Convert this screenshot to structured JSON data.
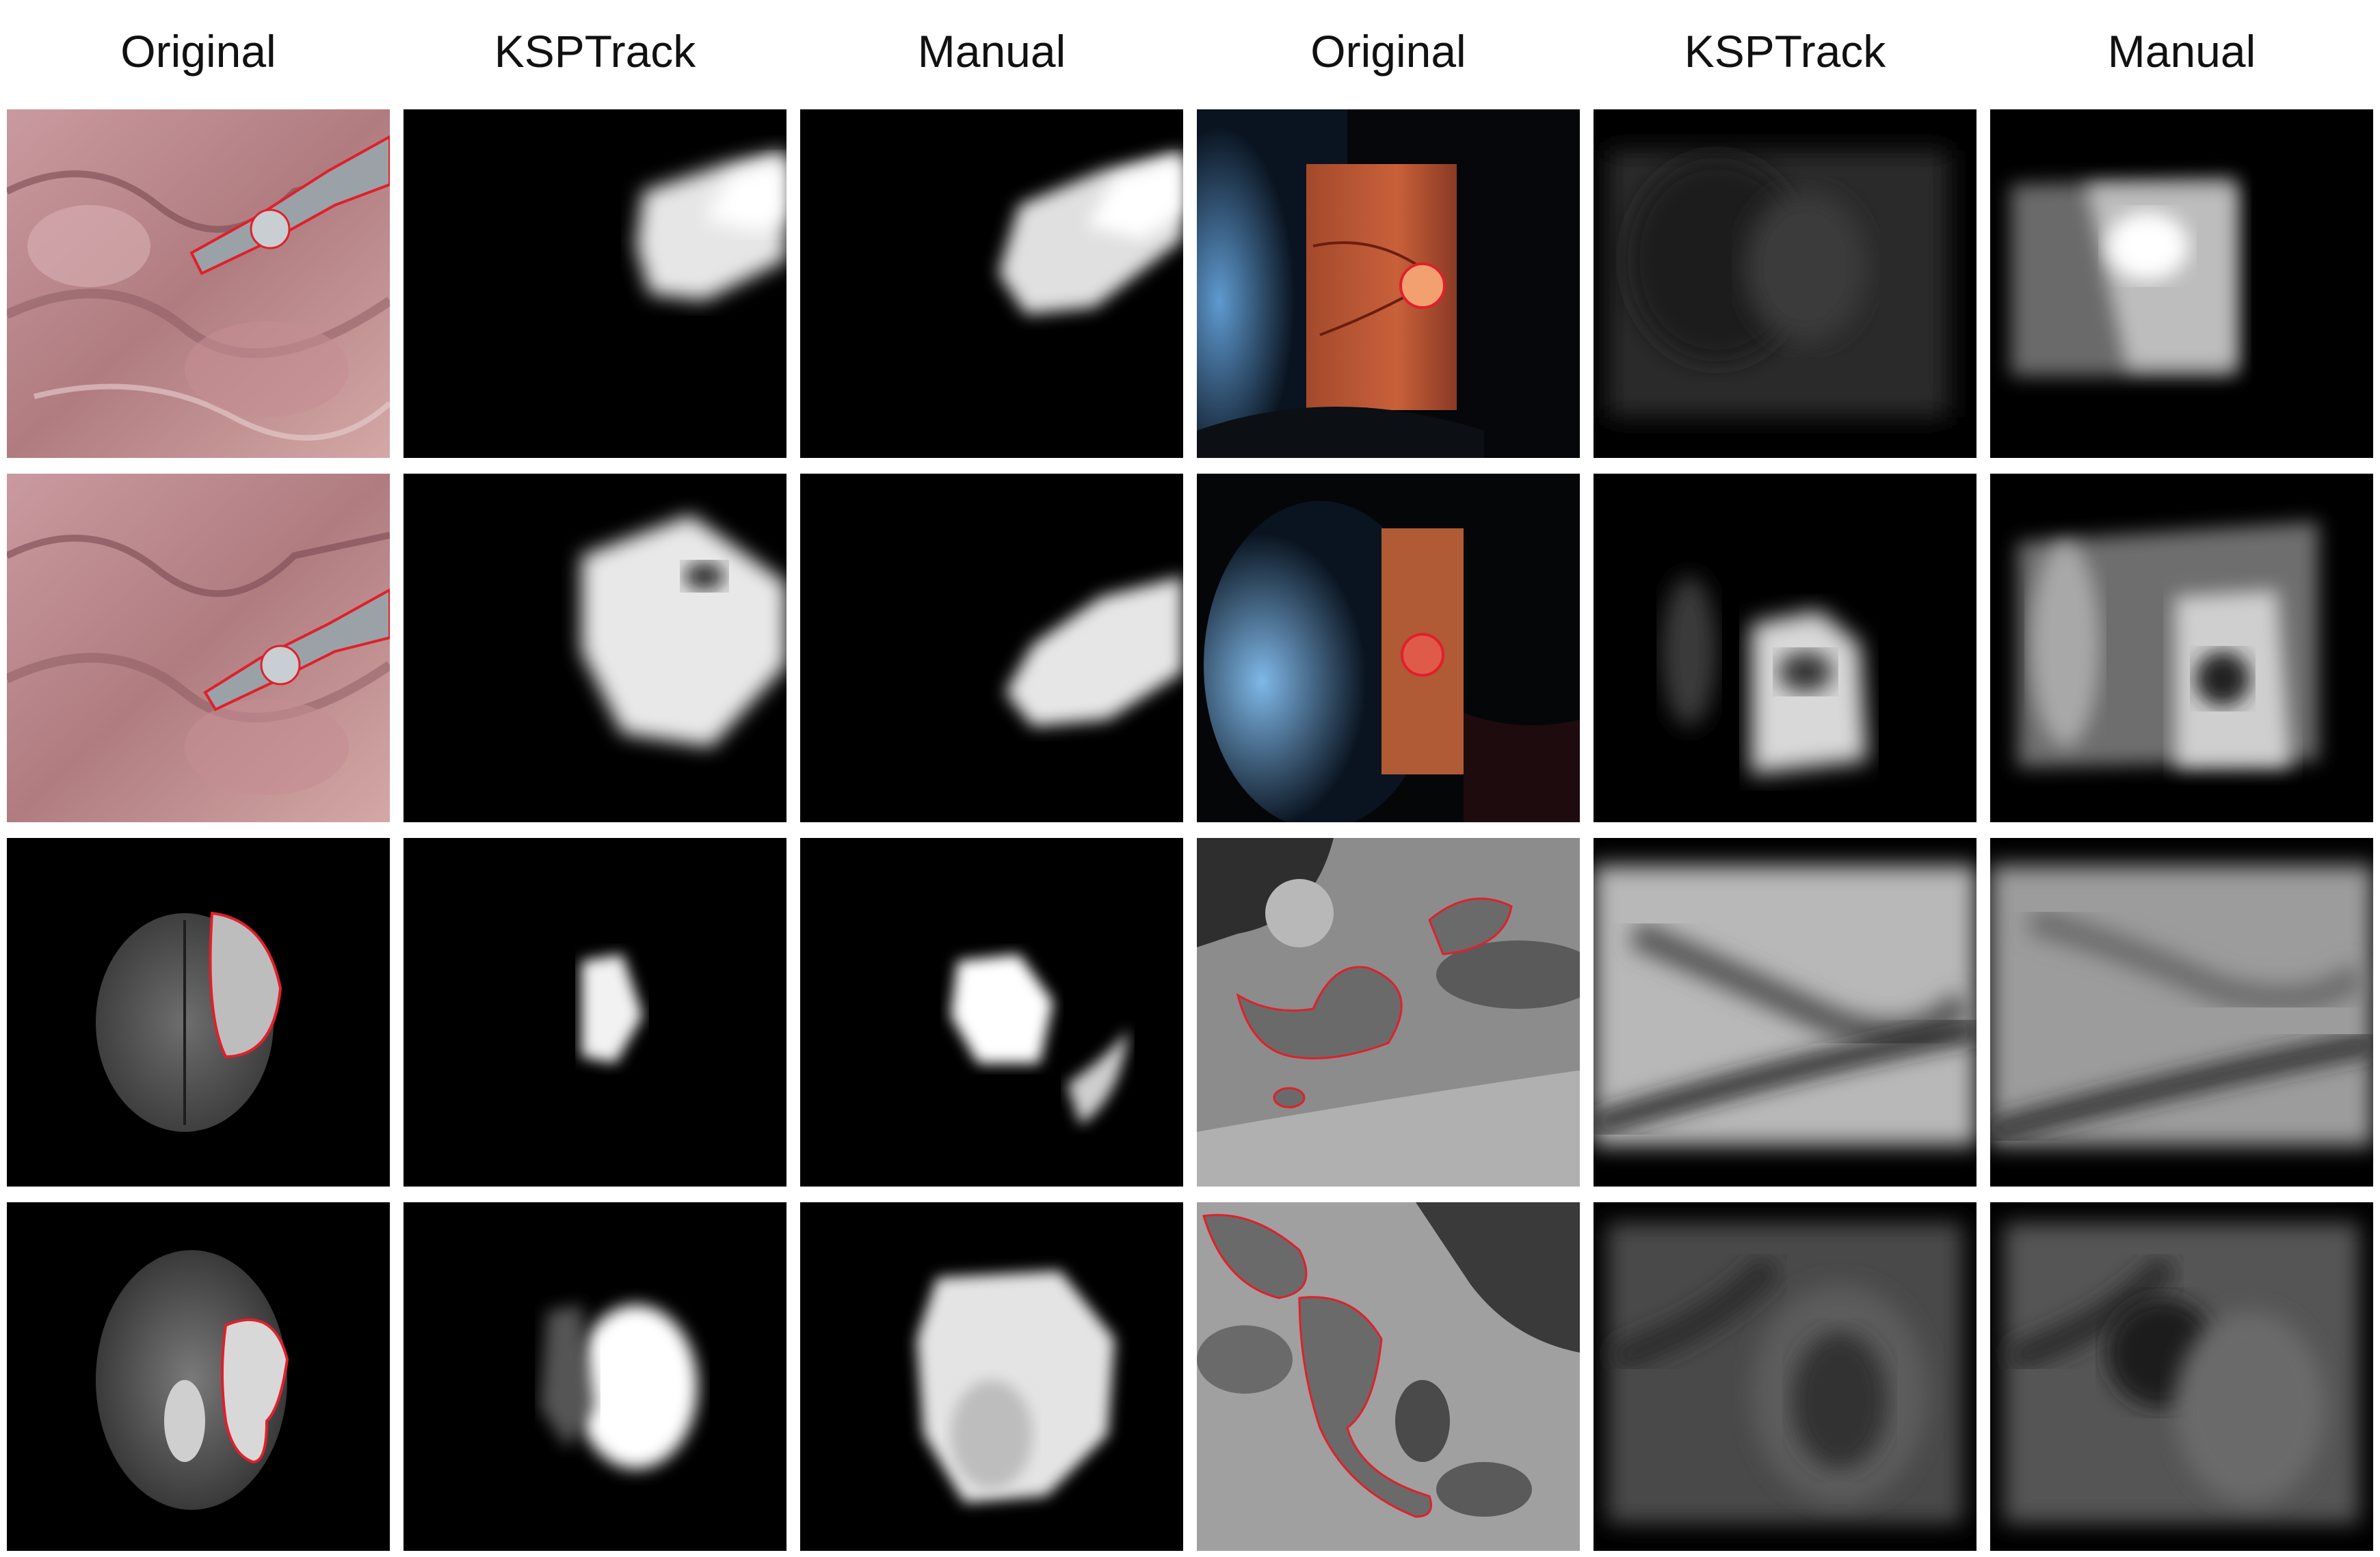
{
  "headers": [
    "Original",
    "KSPTrack",
    "Manual",
    "Original",
    "KSPTrack",
    "Manual"
  ],
  "grid": {
    "rows": 4,
    "cols": 6,
    "row_subjects": [
      [
        "surgical-tool",
        "retina-optic-disc"
      ],
      [
        "surgical-tool",
        "retina-optic-disc"
      ],
      [
        "brain-tumor-mri",
        "lung-ct"
      ],
      [
        "brain-tumor-mri",
        "lung-ct"
      ]
    ]
  },
  "colors": {
    "background": "#ffffff",
    "outline": "#e0202a",
    "tissue": "#b98a8e",
    "mask_bg": "#000000"
  }
}
